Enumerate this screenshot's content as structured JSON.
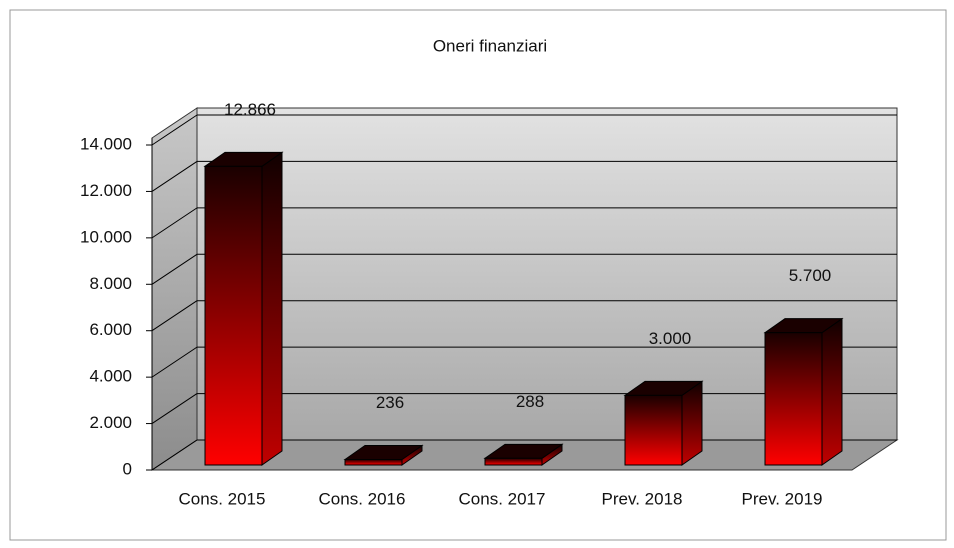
{
  "chart_data": {
    "type": "bar3d",
    "title": "Oneri  finanziari",
    "categories": [
      "Cons. 2015",
      "Cons. 2016",
      "Cons. 2017",
      "Prev. 2018",
      "Prev. 2019"
    ],
    "values": [
      12866,
      236,
      288,
      3000,
      5700
    ],
    "value_labels": [
      "12.866",
      "236",
      "288",
      "3.000",
      "5.700"
    ],
    "ylim": [
      0,
      14000
    ],
    "yticks": [
      0,
      {
        "value": 2000,
        "label": "2.000"
      },
      {
        "value": 4000,
        "label": "4.000"
      },
      {
        "value": 6000,
        "label": "6.000"
      },
      {
        "value": 8000,
        "label": "8.000"
      },
      {
        "value": 10000,
        "label": "10.000"
      },
      {
        "value": 12000,
        "label": "12.000"
      },
      {
        "value": 14000,
        "label": "14.000"
      }
    ],
    "grid": true,
    "color": "#ff0000"
  }
}
